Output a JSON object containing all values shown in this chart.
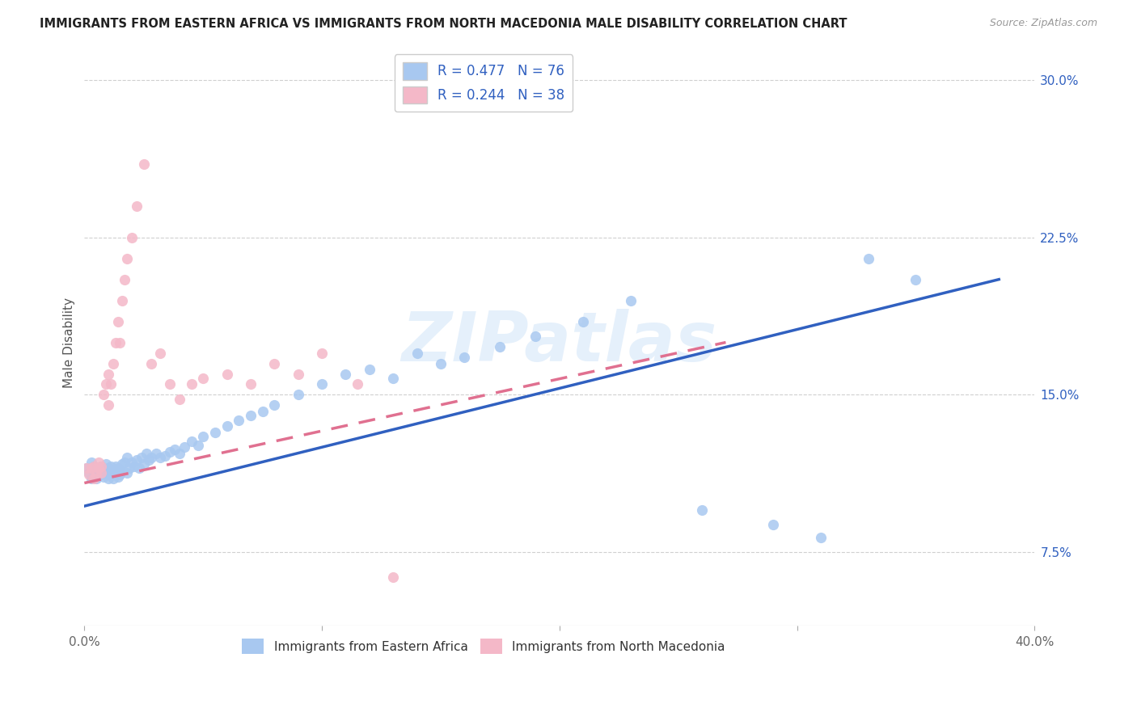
{
  "title": "IMMIGRANTS FROM EASTERN AFRICA VS IMMIGRANTS FROM NORTH MACEDONIA MALE DISABILITY CORRELATION CHART",
  "source": "Source: ZipAtlas.com",
  "ylabel": "Male Disability",
  "xlim": [
    0.0,
    0.4
  ],
  "ylim": [
    0.04,
    0.31
  ],
  "yticks_right": [
    0.075,
    0.15,
    0.225,
    0.3
  ],
  "yticklabels_right": [
    "7.5%",
    "15.0%",
    "22.5%",
    "30.0%"
  ],
  "xticks": [
    0.0,
    0.1,
    0.2,
    0.3,
    0.4
  ],
  "xticklabels": [
    "0.0%",
    "",
    "",
    "",
    "40.0%"
  ],
  "blue_color": "#a8c8f0",
  "pink_color": "#f4b8c8",
  "blue_line_color": "#3060c0",
  "pink_line_color": "#e07090",
  "legend_R1": "R = 0.477",
  "legend_N1": "N = 76",
  "legend_R2": "R = 0.244",
  "legend_N2": "N = 38",
  "legend1": "Immigrants from Eastern Africa",
  "legend2": "Immigrants from North Macedonia",
  "watermark": "ZIPatlas",
  "blue_scatter_x": [
    0.001,
    0.002,
    0.003,
    0.003,
    0.004,
    0.004,
    0.005,
    0.005,
    0.006,
    0.006,
    0.007,
    0.007,
    0.008,
    0.008,
    0.009,
    0.009,
    0.01,
    0.01,
    0.01,
    0.011,
    0.011,
    0.012,
    0.012,
    0.013,
    0.013,
    0.014,
    0.014,
    0.015,
    0.015,
    0.016,
    0.017,
    0.018,
    0.018,
    0.019,
    0.02,
    0.021,
    0.022,
    0.023,
    0.024,
    0.025,
    0.026,
    0.027,
    0.028,
    0.03,
    0.032,
    0.034,
    0.036,
    0.038,
    0.04,
    0.042,
    0.045,
    0.048,
    0.05,
    0.055,
    0.06,
    0.065,
    0.07,
    0.075,
    0.08,
    0.09,
    0.1,
    0.11,
    0.12,
    0.13,
    0.14,
    0.15,
    0.16,
    0.175,
    0.19,
    0.21,
    0.23,
    0.26,
    0.29,
    0.31,
    0.33,
    0.35
  ],
  "blue_scatter_y": [
    0.115,
    0.113,
    0.118,
    0.11,
    0.112,
    0.116,
    0.114,
    0.11,
    0.113,
    0.115,
    0.112,
    0.116,
    0.111,
    0.114,
    0.113,
    0.117,
    0.112,
    0.115,
    0.11,
    0.113,
    0.116,
    0.114,
    0.11,
    0.113,
    0.116,
    0.111,
    0.115,
    0.112,
    0.114,
    0.117,
    0.118,
    0.113,
    0.12,
    0.115,
    0.118,
    0.116,
    0.119,
    0.115,
    0.12,
    0.117,
    0.122,
    0.119,
    0.12,
    0.122,
    0.12,
    0.121,
    0.123,
    0.124,
    0.122,
    0.125,
    0.128,
    0.126,
    0.13,
    0.132,
    0.135,
    0.138,
    0.14,
    0.142,
    0.145,
    0.15,
    0.155,
    0.16,
    0.162,
    0.158,
    0.17,
    0.165,
    0.168,
    0.173,
    0.178,
    0.185,
    0.195,
    0.095,
    0.088,
    0.082,
    0.215,
    0.205
  ],
  "pink_scatter_x": [
    0.001,
    0.002,
    0.003,
    0.004,
    0.004,
    0.005,
    0.006,
    0.006,
    0.007,
    0.007,
    0.008,
    0.009,
    0.01,
    0.01,
    0.011,
    0.012,
    0.013,
    0.014,
    0.015,
    0.016,
    0.017,
    0.018,
    0.02,
    0.022,
    0.025,
    0.028,
    0.032,
    0.036,
    0.04,
    0.045,
    0.05,
    0.06,
    0.07,
    0.08,
    0.09,
    0.1,
    0.115,
    0.13
  ],
  "pink_scatter_y": [
    0.115,
    0.112,
    0.115,
    0.11,
    0.116,
    0.112,
    0.115,
    0.118,
    0.113,
    0.116,
    0.15,
    0.155,
    0.145,
    0.16,
    0.155,
    0.165,
    0.175,
    0.185,
    0.175,
    0.195,
    0.205,
    0.215,
    0.225,
    0.24,
    0.26,
    0.165,
    0.17,
    0.155,
    0.148,
    0.155,
    0.158,
    0.16,
    0.155,
    0.165,
    0.16,
    0.17,
    0.155,
    0.063
  ],
  "blue_trendline_x": [
    0.0,
    0.385
  ],
  "blue_trendline_y": [
    0.097,
    0.205
  ],
  "pink_trendline_x": [
    0.0,
    0.27
  ],
  "pink_trendline_y": [
    0.108,
    0.175
  ]
}
